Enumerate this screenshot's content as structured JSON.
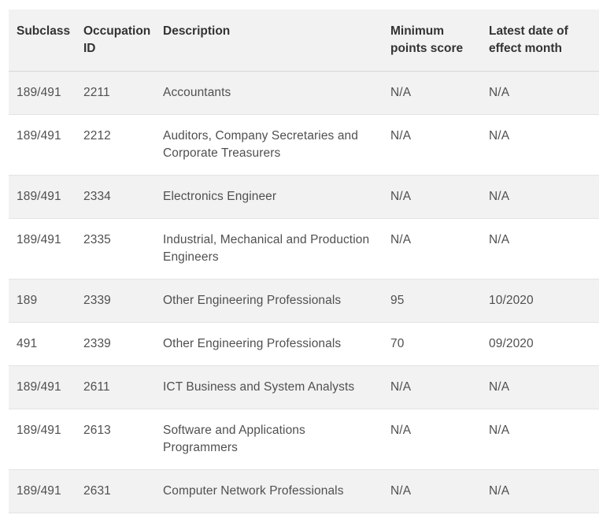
{
  "table": {
    "headers": {
      "subclass": "Subclass",
      "occupation_id": "Occupation ID",
      "description": "Description",
      "min_points": "Minimum points score",
      "latest_date": "Latest date of effect month"
    },
    "rows": [
      {
        "subclass": "189/491",
        "occupation_id": "2211",
        "description": "Accountants",
        "min_points": "N/A",
        "latest_date": "N/A"
      },
      {
        "subclass": "189/491",
        "occupation_id": "2212",
        "description": "Auditors, Company Secretaries and Corporate Treasurers",
        "min_points": "N/A",
        "latest_date": "N/A"
      },
      {
        "subclass": "189/491",
        "occupation_id": "2334",
        "description": "Electronics Engineer",
        "min_points": "N/A",
        "latest_date": "N/A"
      },
      {
        "subclass": "189/491",
        "occupation_id": "2335",
        "description": "Industrial, Mechanical and Production Engineers",
        "min_points": "N/A",
        "latest_date": "N/A"
      },
      {
        "subclass": "189",
        "occupation_id": "2339",
        "description": "Other Engineering Professionals",
        "min_points": "95",
        "latest_date": "10/2020"
      },
      {
        "subclass": "491",
        "occupation_id": "2339",
        "description": "Other Engineering Professionals",
        "min_points": "70",
        "latest_date": "09/2020"
      },
      {
        "subclass": "189/491",
        "occupation_id": "2611",
        "description": "ICT Business and System Analysts",
        "min_points": "N/A",
        "latest_date": "N/A"
      },
      {
        "subclass": "189/491",
        "occupation_id": "2613",
        "description": "Software and Applications Programmers",
        "min_points": "N/A",
        "latest_date": "N/A"
      },
      {
        "subclass": "189/491",
        "occupation_id": "2631",
        "description": "Computer Network Professionals",
        "min_points": "N/A",
        "latest_date": "N/A"
      }
    ]
  }
}
